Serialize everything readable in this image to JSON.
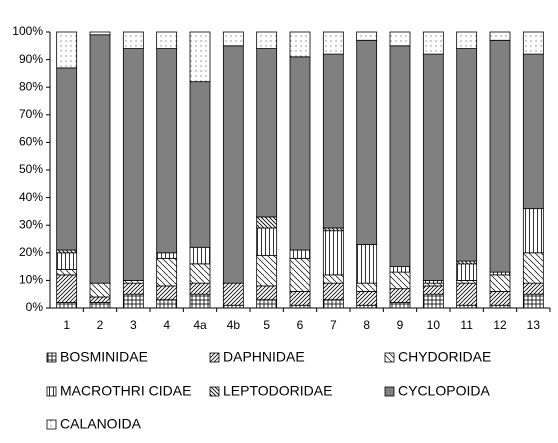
{
  "chart_data": {
    "type": "stacked-bar-100",
    "categories": [
      "1",
      "2",
      "3",
      "4",
      "4a",
      "4b",
      "5",
      "6",
      "7",
      "8",
      "9",
      "10",
      "11",
      "12",
      "13"
    ],
    "series": [
      {
        "name": "BOSMINIDAE",
        "color": "#ffffff",
        "values": [
          2,
          2,
          5,
          3,
          5,
          1,
          3,
          1,
          3,
          1,
          2,
          5,
          1,
          1,
          5
        ]
      },
      {
        "name": "DAPHNIDAE",
        "color": "#ffffff",
        "values": [
          10,
          2,
          4,
          5,
          4,
          8,
          5,
          5,
          6,
          5,
          5,
          3,
          8,
          5,
          4
        ]
      },
      {
        "name": "CHYDORIDAE",
        "color": "#ffffff",
        "values": [
          2,
          5,
          1,
          10,
          7,
          0,
          11,
          12,
          3,
          3,
          6,
          1,
          1,
          6,
          11
        ]
      },
      {
        "name": "MACROTHRI CIDAE",
        "color": "#ffffff",
        "values": [
          6,
          0,
          0,
          2,
          6,
          0,
          10,
          3,
          16,
          14,
          2,
          1,
          6,
          1,
          16
        ]
      },
      {
        "name": "LEPTODORIDAE",
        "color": "#ffffff",
        "values": [
          1,
          0,
          0,
          0,
          0,
          0,
          4,
          0,
          1,
          0,
          0,
          0,
          1,
          0,
          0
        ]
      },
      {
        "name": "CYCLOPOIDA",
        "color": "#808080",
        "values": [
          66,
          90,
          84,
          74,
          60,
          86,
          61,
          70,
          63,
          74,
          80,
          82,
          77,
          84,
          56
        ]
      },
      {
        "name": "CALANOIDA",
        "color": "#ffffff",
        "values": [
          13,
          1,
          6,
          6,
          18,
          5,
          6,
          9,
          8,
          3,
          5,
          8,
          6,
          3,
          8
        ]
      }
    ],
    "ylim": [
      0,
      100
    ],
    "yticks": [
      {
        "value": 0,
        "label": "0%"
      },
      {
        "value": 10,
        "label": "10%"
      },
      {
        "value": 20,
        "label": "20%"
      },
      {
        "value": 30,
        "label": "30%"
      },
      {
        "value": 40,
        "label": "40%"
      },
      {
        "value": 50,
        "label": "50%"
      },
      {
        "value": 60,
        "label": "60%"
      },
      {
        "value": 70,
        "label": "70%"
      },
      {
        "value": 80,
        "label": "80%"
      },
      {
        "value": 90,
        "label": "90%"
      },
      {
        "value": 100,
        "label": "100%"
      }
    ],
    "legend": "bottom"
  }
}
